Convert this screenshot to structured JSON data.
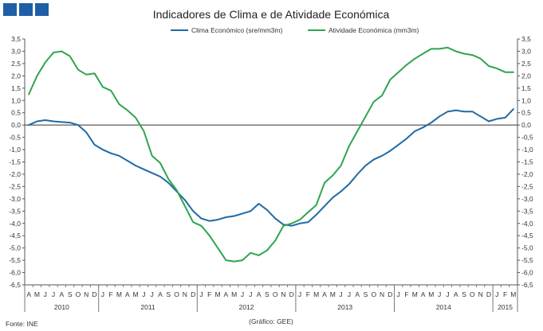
{
  "logo": {
    "name": "gee-logo",
    "blocks": 3
  },
  "chart_data": {
    "type": "line",
    "title": "Indicadores de Clima e de Atividade Económica",
    "source": "Fonte: INE",
    "credit": "(Gráfico: GEE)",
    "ylim": [
      -6.5,
      3.5
    ],
    "ystep": 0.5,
    "y_ticks": [
      "3,5",
      "3,0",
      "2,5",
      "2,0",
      "1,5",
      "1,0",
      "0,5",
      "0,0",
      "-0,5",
      "-1,0",
      "-1,5",
      "-2,0",
      "-2,5",
      "-3,0",
      "-3,5",
      "-4,0",
      "-4,5",
      "-5,0",
      "-5,5",
      "-6,0",
      "-6,5"
    ],
    "months": [
      "A",
      "M",
      "J",
      "J",
      "A",
      "S",
      "O",
      "N",
      "D",
      "J",
      "F",
      "M",
      "A",
      "M",
      "J",
      "J",
      "A",
      "S",
      "O",
      "N",
      "D",
      "J",
      "F",
      "M",
      "A",
      "M",
      "J",
      "J",
      "A",
      "S",
      "O",
      "N",
      "D",
      "J",
      "F",
      "M",
      "A",
      "M",
      "J",
      "J",
      "A",
      "S",
      "O",
      "N",
      "D",
      "J",
      "F",
      "M",
      "A",
      "M",
      "J",
      "J",
      "A",
      "S",
      "O",
      "N",
      "D",
      "J",
      "F",
      "M"
    ],
    "years": [
      {
        "label": "2010",
        "start": 0,
        "end": 9
      },
      {
        "label": "2011",
        "start": 9,
        "end": 21
      },
      {
        "label": "2012",
        "start": 21,
        "end": 33
      },
      {
        "label": "2013",
        "start": 33,
        "end": 45
      },
      {
        "label": "2014",
        "start": 45,
        "end": 57
      },
      {
        "label": "2015",
        "start": 57,
        "end": 60
      }
    ],
    "series": [
      {
        "name": "Clima Económico (sre/mm3m)",
        "color": "#1f6aa5",
        "values": [
          0.0,
          0.15,
          0.2,
          0.15,
          0.12,
          0.1,
          0.0,
          -0.3,
          -0.8,
          -1.0,
          -1.15,
          -1.25,
          -1.45,
          -1.65,
          -1.8,
          -1.95,
          -2.1,
          -2.35,
          -2.7,
          -3.05,
          -3.5,
          -3.8,
          -3.9,
          -3.85,
          -3.75,
          -3.7,
          -3.6,
          -3.5,
          -3.2,
          -3.45,
          -3.8,
          -4.05,
          -4.1,
          -4.0,
          -3.95,
          -3.65,
          -3.3,
          -2.95,
          -2.7,
          -2.4,
          -2.0,
          -1.65,
          -1.4,
          -1.25,
          -1.05,
          -0.8,
          -0.55,
          -0.25,
          -0.1,
          0.1,
          0.35,
          0.55,
          0.6,
          0.55,
          0.55,
          0.35,
          0.15,
          0.25,
          0.3,
          0.65
        ]
      },
      {
        "name": "Atividade Económica (mm3m)",
        "color": "#2fa44f",
        "values": [
          1.25,
          2.0,
          2.55,
          2.95,
          3.0,
          2.8,
          2.25,
          2.05,
          2.1,
          1.55,
          1.4,
          0.85,
          0.6,
          0.3,
          -0.25,
          -1.25,
          -1.55,
          -2.2,
          -2.65,
          -3.3,
          -3.95,
          -4.1,
          -4.5,
          -5.0,
          -5.5,
          -5.55,
          -5.5,
          -5.2,
          -5.3,
          -5.1,
          -4.7,
          -4.1,
          -4.0,
          -3.85,
          -3.55,
          -3.25,
          -2.35,
          -2.05,
          -1.65,
          -0.85,
          -0.25,
          0.35,
          0.95,
          1.2,
          1.85,
          2.15,
          2.45,
          2.7,
          2.9,
          3.1,
          3.1,
          3.15,
          3.0,
          2.9,
          2.85,
          2.7,
          2.4,
          2.3,
          2.15,
          2.15
        ]
      }
    ]
  }
}
